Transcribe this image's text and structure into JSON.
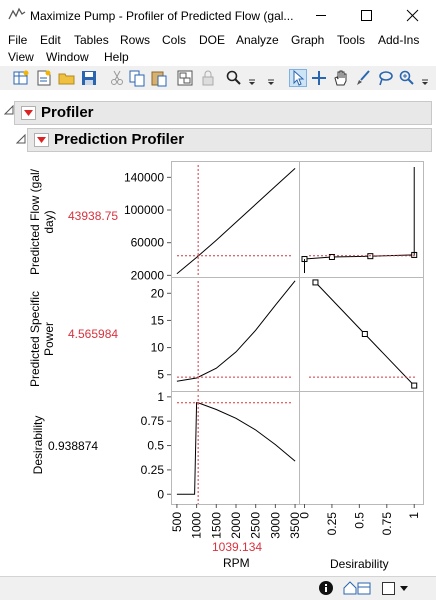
{
  "window": {
    "title": "Maximize Pump - Profiler of Predicted Flow (gal..."
  },
  "menu": [
    "File",
    "Edit",
    "Tables",
    "Rows",
    "Cols",
    "DOE",
    "Analyze",
    "Graph",
    "Tools",
    "Add-Ins",
    "View",
    "Window",
    "Help"
  ],
  "outline": {
    "profiler": "Profiler",
    "prediction_profiler": "Prediction Profiler"
  },
  "responses": [
    {
      "label_line1": "Predicted Flow (gal/",
      "label_line2": "day)",
      "value": "43938.75"
    },
    {
      "label_line1": "Predicted Specific",
      "label_line2": "Power",
      "value": "4.565984"
    },
    {
      "label_line1": "Desirability",
      "label_line2": "",
      "value": "0.938874"
    }
  ],
  "factor": {
    "name": "RPM",
    "value": "1039.134"
  },
  "desirability_axis": {
    "label": "Desirability"
  },
  "chart_data": {
    "type": "line",
    "x": {
      "name": "RPM",
      "range": [
        350,
        3600
      ],
      "ticks": [
        "500",
        "1000",
        "1500",
        "2000",
        "2500",
        "3000",
        "3500"
      ],
      "current": 1039.134
    },
    "panels": [
      {
        "response": "Predicted Flow (gal/day)",
        "ylim": [
          18000,
          160000
        ],
        "ticks": [
          "20000",
          "60000",
          "100000",
          "140000"
        ],
        "points_x": [
          500,
          1000,
          1500,
          2000,
          2500,
          3000,
          3500
        ],
        "points_y": [
          22000,
          42000,
          63000,
          85000,
          107000,
          129000,
          151000
        ],
        "current": 43938.75,
        "desirability_function": {
          "desirability": [
            0,
            0.25,
            0.6,
            1.0
          ],
          "values": [
            40000,
            42500,
            43500,
            45000
          ]
        }
      },
      {
        "response": "Predicted Specific Power",
        "ylim": [
          2,
          23
        ],
        "ticks": [
          "5",
          "10",
          "15",
          "20"
        ],
        "points_x": [
          500,
          1000,
          1500,
          2000,
          2500,
          3000,
          3500
        ],
        "points_y": [
          3.8,
          4.4,
          6.2,
          9.2,
          13.2,
          17.8,
          22.3
        ],
        "current": 4.565984,
        "desirability_function": {
          "desirability": [
            0.1,
            0.55,
            1.0
          ],
          "values": [
            22,
            12.5,
            3.0
          ]
        }
      },
      {
        "response": "Desirability",
        "ylim": [
          -0.1,
          1.06
        ],
        "ticks": [
          "0",
          "0.25",
          "0.5",
          "0.75",
          "1"
        ],
        "points_x": [
          500,
          950,
          1000,
          1039.134,
          1500,
          2000,
          2500,
          3000,
          3500
        ],
        "points_y": [
          0,
          0,
          0.94,
          0.938874,
          0.87,
          0.78,
          0.66,
          0.51,
          0.34
        ],
        "current": 0.938874
      }
    ],
    "desirability_axis": {
      "range": [
        -0.05,
        1.08
      ],
      "ticks": [
        "0",
        "0.25",
        "0.5",
        "0.75",
        "1"
      ]
    }
  }
}
